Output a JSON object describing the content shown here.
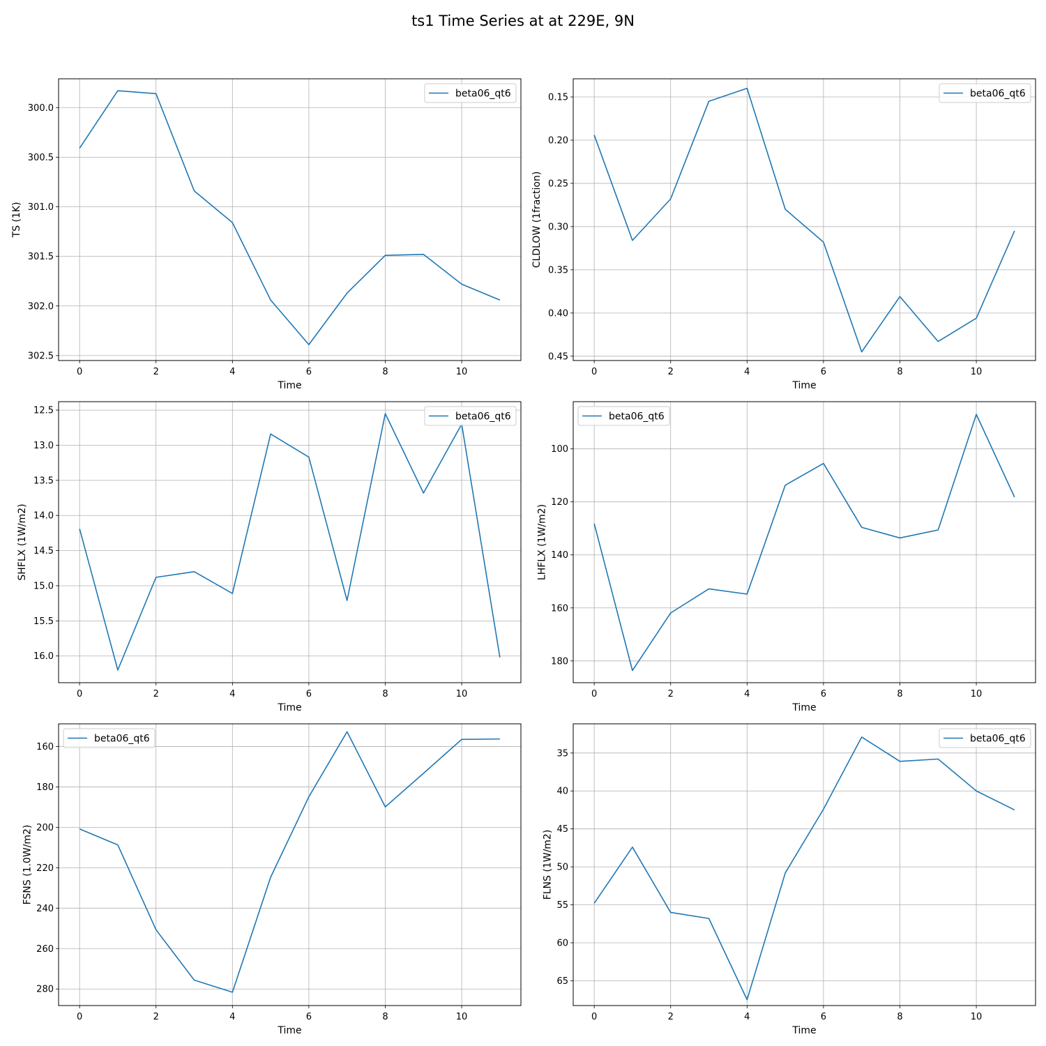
{
  "figure": {
    "suptitle": "ts1 Time Series at at 229E, 9N"
  },
  "chart_data": [
    {
      "type": "line",
      "xlabel": "Time",
      "ylabel": "TS (1K)",
      "y_inverted": true,
      "xlim": [
        -0.55,
        11.55
      ],
      "ylim": [
        302.55,
        299.71
      ],
      "xticks": [
        0,
        2,
        4,
        6,
        8,
        10
      ],
      "yticks": [
        300.0,
        300.5,
        301.0,
        301.5,
        302.0,
        302.5
      ],
      "ytick_labels": [
        "300.0",
        "300.5",
        "301.0",
        "301.5",
        "302.0",
        "302.5"
      ],
      "grid": true,
      "legend_position": "upper-right",
      "series": [
        {
          "name": "beta06_qt6",
          "color": "#1f77b4",
          "x": [
            0,
            1,
            2,
            3,
            4,
            5,
            6,
            7,
            8,
            9,
            10,
            11
          ],
          "values": [
            300.41,
            299.83,
            299.86,
            300.84,
            301.16,
            301.94,
            302.39,
            301.87,
            301.49,
            301.48,
            301.78,
            301.94
          ]
        }
      ]
    },
    {
      "type": "line",
      "xlabel": "Time",
      "ylabel": "CLDLOW (1fraction)",
      "y_inverted": true,
      "xlim": [
        -0.55,
        11.55
      ],
      "ylim": [
        0.455,
        0.129
      ],
      "xticks": [
        0,
        2,
        4,
        6,
        8,
        10
      ],
      "yticks": [
        0.15,
        0.2,
        0.25,
        0.3,
        0.35,
        0.4,
        0.45
      ],
      "ytick_labels": [
        "0.15",
        "0.20",
        "0.25",
        "0.30",
        "0.35",
        "0.40",
        "0.45"
      ],
      "grid": true,
      "legend_position": "upper-right",
      "series": [
        {
          "name": "beta06_qt6",
          "color": "#1f77b4",
          "x": [
            0,
            1,
            2,
            3,
            4,
            5,
            6,
            7,
            8,
            9,
            10,
            11
          ],
          "values": [
            0.194,
            0.316,
            0.268,
            0.155,
            0.14,
            0.28,
            0.318,
            0.445,
            0.381,
            0.433,
            0.406,
            0.305
          ]
        }
      ]
    },
    {
      "type": "line",
      "xlabel": "Time",
      "ylabel": "SHFLX (1W/m2)",
      "y_inverted": true,
      "xlim": [
        -0.55,
        11.55
      ],
      "ylim": [
        16.38,
        12.38
      ],
      "xticks": [
        0,
        2,
        4,
        6,
        8,
        10
      ],
      "yticks": [
        12.5,
        13.0,
        13.5,
        14.0,
        14.5,
        15.0,
        15.5,
        16.0
      ],
      "ytick_labels": [
        "12.5",
        "13.0",
        "13.5",
        "14.0",
        "14.5",
        "15.0",
        "15.5",
        "16.0"
      ],
      "grid": true,
      "legend_position": "upper-right",
      "series": [
        {
          "name": "beta06_qt6",
          "color": "#1f77b4",
          "x": [
            0,
            1,
            2,
            3,
            4,
            5,
            6,
            7,
            8,
            9,
            10,
            11
          ],
          "values": [
            14.19,
            16.2,
            14.88,
            14.8,
            15.11,
            12.84,
            13.17,
            15.21,
            12.55,
            13.68,
            12.7,
            16.02
          ]
        }
      ]
    },
    {
      "type": "line",
      "xlabel": "Time",
      "ylabel": "LHFLX (1W/m2)",
      "y_inverted": true,
      "xlim": [
        -0.55,
        11.55
      ],
      "ylim": [
        188.2,
        82.2
      ],
      "xticks": [
        0,
        2,
        4,
        6,
        8,
        10
      ],
      "yticks": [
        100,
        120,
        140,
        160,
        180
      ],
      "ytick_labels": [
        "100",
        "120",
        "140",
        "160",
        "180"
      ],
      "grid": true,
      "legend_position": "upper-left",
      "series": [
        {
          "name": "beta06_qt6",
          "color": "#1f77b4",
          "x": [
            0,
            1,
            2,
            3,
            4,
            5,
            6,
            7,
            8,
            9,
            10,
            11
          ],
          "values": [
            128.2,
            183.6,
            161.9,
            152.8,
            154.8,
            113.7,
            105.5,
            129.6,
            133.6,
            130.6,
            87.0,
            118.2
          ]
        }
      ]
    },
    {
      "type": "line",
      "xlabel": "Time",
      "ylabel": "FSNS (1.0W/m2)",
      "y_inverted": true,
      "xlim": [
        -0.55,
        11.55
      ],
      "ylim": [
        288.2,
        148.8
      ],
      "xticks": [
        0,
        2,
        4,
        6,
        8,
        10
      ],
      "yticks": [
        160,
        180,
        200,
        220,
        240,
        260,
        280
      ],
      "ytick_labels": [
        "160",
        "180",
        "200",
        "220",
        "240",
        "260",
        "280"
      ],
      "grid": true,
      "legend_position": "upper-left",
      "series": [
        {
          "name": "beta06_qt6",
          "color": "#1f77b4",
          "x": [
            0,
            1,
            2,
            3,
            4,
            5,
            6,
            7,
            8,
            9,
            10,
            11
          ],
          "values": [
            200.8,
            208.7,
            250.7,
            275.6,
            281.6,
            224.7,
            184.9,
            152.7,
            189.9,
            173.3,
            156.5,
            156.3
          ]
        }
      ]
    },
    {
      "type": "line",
      "xlabel": "Time",
      "ylabel": "FLNS (1W/m2)",
      "y_inverted": true,
      "xlim": [
        -0.55,
        11.55
      ],
      "ylim": [
        68.27,
        31.16
      ],
      "xticks": [
        0,
        2,
        4,
        6,
        8,
        10
      ],
      "yticks": [
        35,
        40,
        45,
        50,
        55,
        60,
        65
      ],
      "ytick_labels": [
        "35",
        "40",
        "45",
        "50",
        "55",
        "60",
        "65"
      ],
      "grid": true,
      "legend_position": "upper-right",
      "series": [
        {
          "name": "beta06_qt6",
          "color": "#1f77b4",
          "x": [
            0,
            1,
            2,
            3,
            4,
            5,
            6,
            7,
            8,
            9,
            10,
            11
          ],
          "values": [
            54.8,
            47.4,
            56.0,
            56.8,
            67.5,
            50.8,
            42.4,
            32.9,
            36.1,
            35.8,
            40.0,
            42.5
          ]
        }
      ]
    }
  ]
}
